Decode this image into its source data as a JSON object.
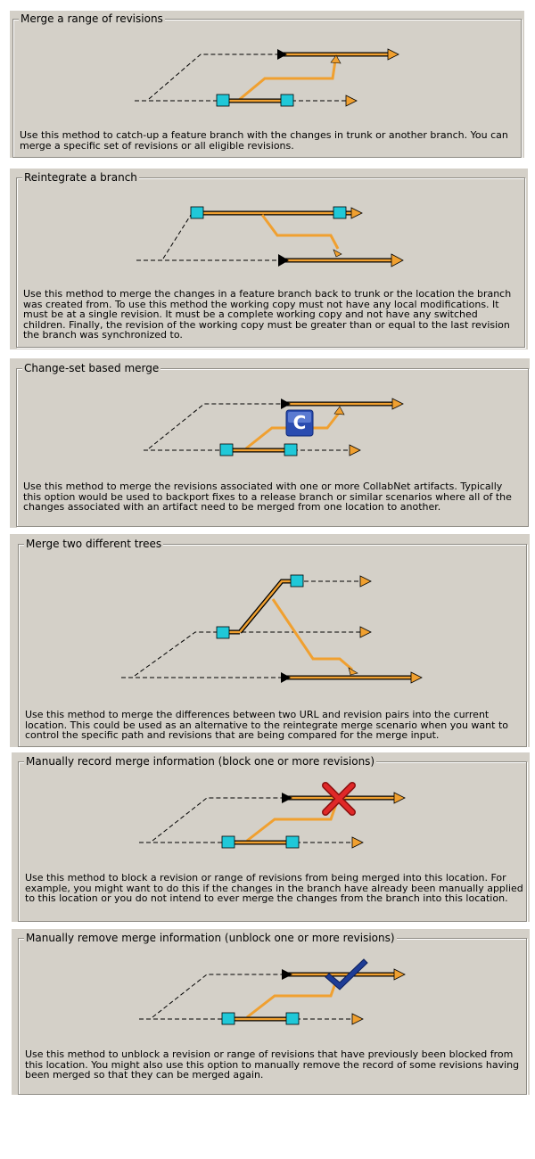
{
  "options": [
    {
      "title": "Merge a range of revisions",
      "description": "Use this method to catch-up a feature branch with the changes in trunk or another branch.  You can merge a specific set of revisions or all eligible revisions."
    },
    {
      "title": "Reintegrate a branch",
      "description": "Use this method to merge the changes in a feature branch back to trunk or the location the branch was created from.  To use this method the working copy must not have any local modifications. It must be at a single revision.  It must be a complete working copy and not have any switched children.  Finally, the revision of the working copy must be greater than or equal to the last revision the branch was synchronized to."
    },
    {
      "title": "Change-set based merge",
      "description": "Use this method to merge the revisions associated with one or more CollabNet artifacts. Typically this option would be used to backport fixes to a release branch or similar scenarios where all of the changes associated with an artifact need to be merged from one location to another.",
      "badge_letter": "C"
    },
    {
      "title": "Merge two different trees",
      "description": "Use this method to merge the differences between two URL and revision pairs into the current location.  This could be used as an alternative to the reintegrate merge scenario when you want to control the specific path and revisions that are being compared for the merge input."
    },
    {
      "title": "Manually record merge information (block one or more revisions)",
      "description": "Use this method to block a revision or range of revisions from being merged into this location. For example, you might want to do this if the changes in the branch have already been manually applied to this location or you do not intend to ever merge the changes from the branch into this location."
    },
    {
      "title": "Manually remove merge information (unblock one or more revisions)",
      "description": "Use this method to unblock a revision or range of revisions that have previously been blocked from this location.  You might also use this option to manually remove the record of some revisions having been merged so that they can be merged again."
    }
  ],
  "colors": {
    "panel_bg": "#d4d0c8",
    "branch_line": "#f0a030",
    "trunk_line": "#000000",
    "revision_box": "#20c8d8",
    "block_mark": "#d82020",
    "unblock_mark": "#1e3c96"
  },
  "icons": [
    "revision-box-icon",
    "arrow-head-icon",
    "collabnet-icon",
    "block-x-icon",
    "checkmark-icon"
  ]
}
